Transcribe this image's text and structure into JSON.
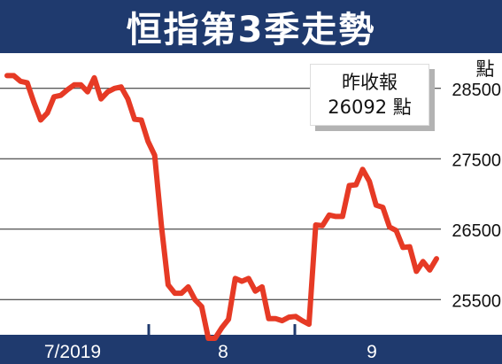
{
  "chart_data": {
    "type": "line",
    "title": "恒指第3季走勢",
    "ylabel": "點",
    "ylim": [
      25000,
      29000
    ],
    "y_ticks": [
      28500,
      27500,
      26500,
      25500
    ],
    "x_tick_labels": [
      "7/2019",
      "8",
      "9"
    ],
    "annotation": {
      "line1": "昨收報",
      "line2": "26092 點"
    },
    "line_color": "#e63a25",
    "series": [
      {
        "values": [
          28680,
          28680,
          28600,
          28580,
          28300,
          28050,
          28150,
          28380,
          28400,
          28480,
          28550,
          28550,
          28450,
          28650,
          28350,
          28450,
          28500,
          28520,
          28350,
          28060,
          28050,
          27750,
          27550,
          26550,
          25710,
          25590,
          25590,
          25680,
          25500,
          25400,
          24950,
          24950,
          25100,
          25220,
          25800,
          25760,
          25800,
          25620,
          25680,
          25230,
          25230,
          25200,
          25250,
          25260,
          25200,
          25150,
          26560,
          26550,
          26700,
          26680,
          26680,
          27120,
          27130,
          27350,
          27180,
          26840,
          26810,
          26530,
          26480,
          26240,
          26250,
          25900,
          26040,
          25920,
          26080
        ]
      }
    ]
  }
}
